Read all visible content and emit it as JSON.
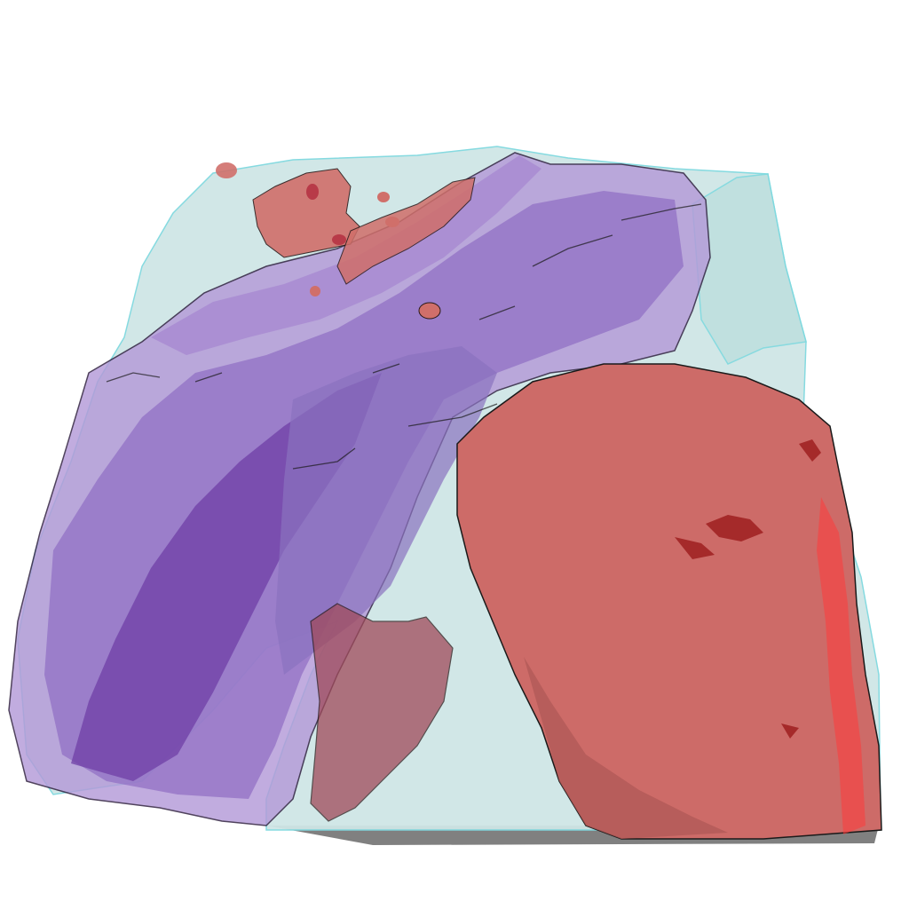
{
  "scene": {
    "background": "#ffffff",
    "volume_color": "#cfe6e6",
    "volume_edge_color": "#7fd9df",
    "purple_layer_light": "#b49ad8",
    "purple_layer_mid": "#9270c4",
    "purple_layer_dark": "#6f3fa6",
    "red_body_color": "#cd6b68",
    "red_body_highlight": "#ff3b3b",
    "shadow_color": "#6a6a6a",
    "outline_color": "#1a1a1a"
  }
}
